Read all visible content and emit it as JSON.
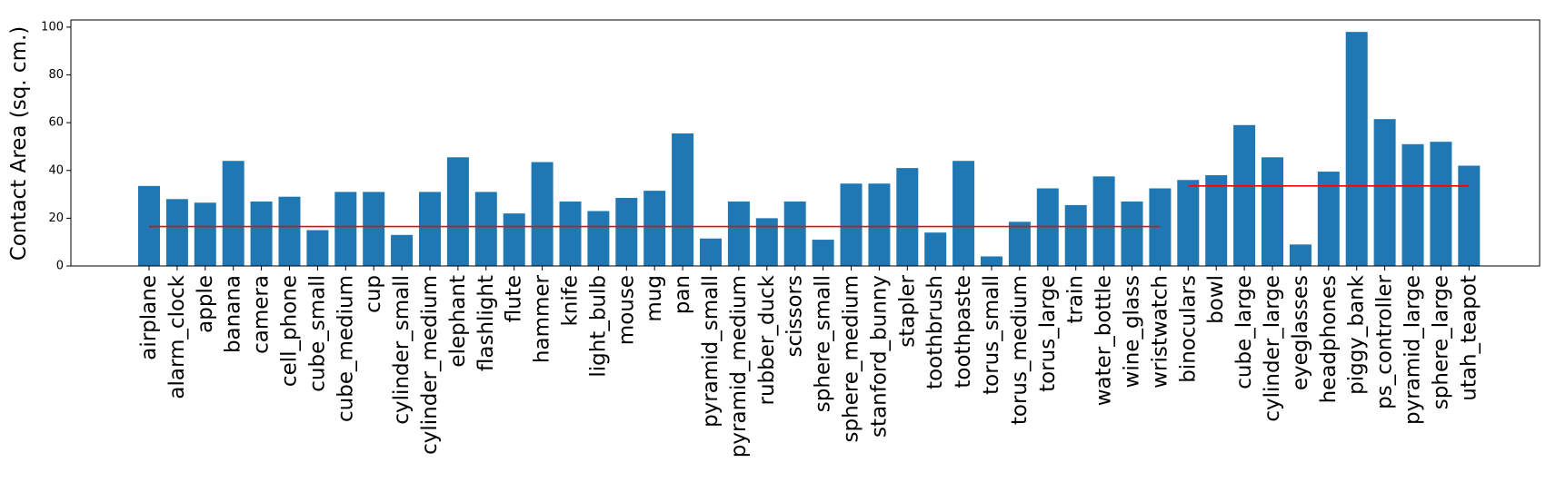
{
  "chart_data": {
    "type": "bar",
    "ylabel": "Contact Area (sq. cm.)",
    "xlabel": "",
    "title": "",
    "ylim": [
      0,
      103
    ],
    "yticks": [
      0,
      20,
      40,
      60,
      80,
      100
    ],
    "grid": false,
    "legend": "none",
    "bar_color": "#1f77b4",
    "mean_line_color": "#ff0000",
    "categories": [
      "airplane",
      "alarm_clock",
      "apple",
      "banana",
      "camera",
      "cell_phone",
      "cube_small",
      "cube_medium",
      "cup",
      "cylinder_small",
      "cylinder_medium",
      "elephant",
      "flashlight",
      "flute",
      "hammer",
      "knife",
      "light_bulb",
      "mouse",
      "mug",
      "pan",
      "pyramid_small",
      "pyramid_medium",
      "rubber_duck",
      "scissors",
      "sphere_small",
      "sphere_medium",
      "stanford_bunny",
      "stapler",
      "toothbrush",
      "toothpaste",
      "torus_small",
      "torus_medium",
      "torus_large",
      "train",
      "water_bottle",
      "wine_glass",
      "wristwatch",
      "binoculars",
      "bowl",
      "cube_large",
      "cylinder_large",
      "eyeglasses",
      "headphones",
      "piggy_bank",
      "ps_controller",
      "pyramid_large",
      "sphere_large",
      "utah_teapot"
    ],
    "values": [
      33.5,
      28,
      26.5,
      44,
      27,
      29,
      15,
      31,
      31,
      13,
      31,
      45.5,
      31,
      22,
      43.5,
      27,
      23,
      28.5,
      31.5,
      55.5,
      11.5,
      27,
      20,
      27,
      11,
      34.5,
      34.5,
      41,
      14,
      44,
      4,
      18.5,
      32.5,
      25.5,
      37.5,
      27,
      32.5,
      36,
      38,
      59,
      45.5,
      9,
      39.5,
      98,
      61.5,
      51,
      52,
      42
    ],
    "mean_lines": [
      {
        "from": "airplane",
        "to": "wristwatch",
        "value": 16.5
      },
      {
        "from": "binoculars",
        "to": "utah_teapot",
        "value": 33.5
      }
    ]
  }
}
